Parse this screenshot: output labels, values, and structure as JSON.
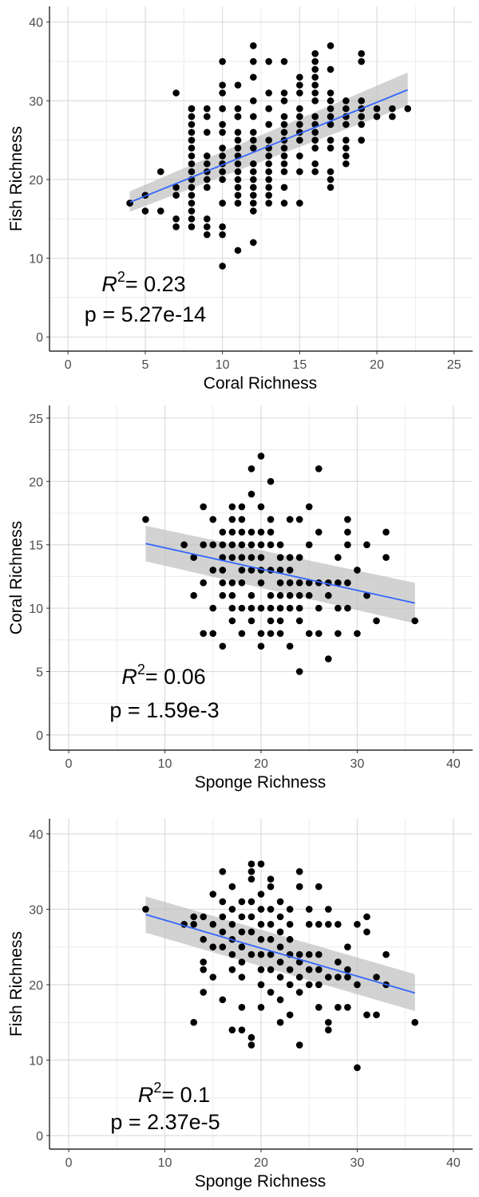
{
  "chart_data": [
    {
      "type": "scatter",
      "xlabel": "Coral Richness",
      "ylabel": "Fish Richness",
      "xlim": [
        -1.2,
        26.2
      ],
      "ylim": [
        -1.8,
        42
      ],
      "xticks": [
        0,
        5,
        10,
        15,
        20,
        25
      ],
      "yticks": [
        0,
        10,
        20,
        30,
        40
      ],
      "grid": true,
      "annotation": {
        "r2_symbol": "R",
        "r2_exponent": "2",
        "r2_value": "= 0.23",
        "p_text": "p = 5.27e-14"
      },
      "trend": {
        "x": [
          4,
          22
        ],
        "y": [
          17.1,
          31.4
        ],
        "ci_low": [
          15.9,
          29.4
        ],
        "ci_high": [
          18.5,
          33.6
        ]
      },
      "x": [
        4,
        5,
        5,
        6,
        6,
        7,
        7,
        7,
        7,
        7,
        8,
        8,
        8,
        8,
        8,
        8,
        8,
        8,
        8,
        8,
        8,
        8,
        8,
        8,
        8,
        8,
        8,
        9,
        9,
        9,
        9,
        9,
        9,
        9,
        9,
        9,
        9,
        9,
        9,
        10,
        10,
        10,
        10,
        10,
        10,
        10,
        10,
        10,
        10,
        10,
        10,
        10,
        10,
        10,
        10,
        11,
        11,
        11,
        11,
        11,
        11,
        11,
        11,
        11,
        11,
        11,
        11,
        11,
        11,
        11,
        12,
        12,
        12,
        12,
        12,
        12,
        12,
        12,
        12,
        12,
        12,
        12,
        12,
        12,
        12,
        12,
        13,
        13,
        13,
        13,
        13,
        13,
        13,
        13,
        13,
        13,
        13,
        13,
        13,
        14,
        14,
        14,
        14,
        14,
        14,
        14,
        14,
        14,
        14,
        14,
        14,
        14,
        15,
        15,
        15,
        15,
        15,
        15,
        15,
        15,
        15,
        15,
        15,
        16,
        16,
        16,
        16,
        16,
        16,
        16,
        16,
        16,
        16,
        16,
        16,
        16,
        16,
        17,
        17,
        17,
        17,
        17,
        17,
        17,
        17,
        17,
        17,
        17,
        17,
        18,
        18,
        18,
        18,
        18,
        18,
        18,
        18,
        19,
        19,
        19,
        19,
        19,
        19,
        19,
        20,
        20,
        21,
        21,
        22
      ],
      "y": [
        17,
        16,
        18,
        16,
        21,
        31,
        19,
        18,
        15,
        14,
        29,
        28,
        27,
        26,
        25,
        24,
        23,
        22,
        21,
        20,
        19,
        18,
        17,
        16,
        15,
        14,
        29,
        29,
        26,
        23,
        22,
        21,
        20,
        19,
        15,
        14,
        13,
        19,
        28,
        35,
        32,
        31,
        29,
        27,
        26,
        24,
        22,
        21,
        20,
        17,
        14,
        13,
        9,
        22,
        23,
        32,
        29,
        28,
        26,
        24,
        23,
        22,
        21,
        20,
        19,
        18,
        17,
        11,
        25,
        28,
        37,
        35,
        33,
        30,
        28,
        26,
        25,
        24,
        22,
        21,
        20,
        19,
        18,
        17,
        16,
        12,
        35,
        31,
        29,
        27,
        25,
        24,
        23,
        22,
        21,
        20,
        19,
        18,
        17,
        35,
        31,
        30,
        28,
        27,
        26,
        25,
        24,
        23,
        22,
        19,
        17,
        21,
        33,
        32,
        31,
        29,
        28,
        27,
        26,
        25,
        23,
        21,
        17,
        36,
        35,
        34,
        33,
        32,
        31,
        30,
        28,
        27,
        26,
        25,
        24,
        22,
        21,
        37,
        34,
        31,
        30,
        29,
        28,
        27,
        25,
        24,
        21,
        20,
        19,
        30,
        29,
        28,
        27,
        25,
        24,
        23,
        22,
        36,
        35,
        30,
        29,
        28,
        27,
        25,
        28,
        29,
        29,
        28,
        29
      ]
    },
    {
      "type": "scatter",
      "xlabel": "Sponge Richness",
      "ylabel": "Coral Richness",
      "xlim": [
        -2,
        42
      ],
      "ylim": [
        -1.2,
        26
      ],
      "xticks": [
        0,
        10,
        20,
        30,
        40
      ],
      "yticks": [
        0,
        5,
        10,
        15,
        20,
        25
      ],
      "grid": true,
      "annotation": {
        "r2_symbol": "R",
        "r2_exponent": "2",
        "r2_value": "= 0.06",
        "p_text": "p = 1.59e-3"
      },
      "trend": {
        "x": [
          8,
          36
        ],
        "y": [
          15.1,
          10.4
        ],
        "ci_low": [
          13.7,
          8.8
        ],
        "ci_high": [
          16.5,
          12.0
        ]
      },
      "x": [
        8,
        12,
        13,
        13,
        14,
        14,
        14,
        14,
        15,
        15,
        15,
        15,
        15,
        16,
        16,
        16,
        16,
        16,
        16,
        16,
        17,
        17,
        17,
        17,
        17,
        17,
        17,
        17,
        17,
        18,
        18,
        18,
        18,
        18,
        18,
        18,
        18,
        18,
        19,
        19,
        19,
        19,
        19,
        19,
        19,
        19,
        19,
        20,
        20,
        20,
        20,
        20,
        20,
        20,
        20,
        20,
        20,
        21,
        21,
        21,
        21,
        21,
        21,
        21,
        21,
        21,
        22,
        22,
        22,
        22,
        22,
        22,
        22,
        22,
        23,
        23,
        23,
        23,
        23,
        23,
        23,
        24,
        24,
        24,
        24,
        24,
        24,
        24,
        25,
        25,
        25,
        25,
        25,
        26,
        26,
        26,
        26,
        26,
        27,
        27,
        27,
        28,
        28,
        28,
        28,
        29,
        29,
        29,
        29,
        29,
        30,
        30,
        31,
        31,
        32,
        33,
        33,
        36
      ],
      "y": [
        17,
        15,
        14,
        11,
        18,
        15,
        12,
        8,
        17,
        15,
        13,
        10,
        8,
        16,
        15,
        14,
        13,
        12,
        11,
        7,
        18,
        17,
        16,
        15,
        14,
        12,
        11,
        10,
        9,
        18,
        17,
        16,
        15,
        14,
        13,
        12,
        10,
        8,
        21,
        19,
        16,
        15,
        14,
        13,
        11,
        10,
        9,
        22,
        18,
        16,
        15,
        14,
        13,
        12,
        10,
        8,
        7,
        20,
        17,
        16,
        15,
        13,
        11,
        10,
        9,
        8,
        15,
        14,
        13,
        12,
        11,
        10,
        9,
        8,
        17,
        14,
        13,
        12,
        11,
        10,
        7,
        17,
        14,
        12,
        11,
        10,
        9,
        5,
        18,
        15,
        12,
        11,
        8,
        21,
        16,
        12,
        10,
        8,
        12,
        11,
        6,
        14,
        12,
        10,
        8,
        17,
        16,
        15,
        12,
        10,
        8,
        13,
        15,
        11,
        9,
        16,
        14,
        9
      ]
    },
    {
      "type": "scatter",
      "xlabel": "Sponge Richness",
      "ylabel": "Fish Richness",
      "xlim": [
        -2,
        42
      ],
      "ylim": [
        -1.8,
        42
      ],
      "xticks": [
        0,
        10,
        20,
        30,
        40
      ],
      "yticks": [
        0,
        10,
        20,
        30,
        40
      ],
      "grid": true,
      "annotation": {
        "r2_symbol": "R",
        "r2_exponent": "2",
        "r2_value": "= 0.1",
        "p_text": "p = 2.37e-5"
      },
      "trend": {
        "x": [
          8,
          36
        ],
        "y": [
          29.3,
          18.9
        ],
        "ci_low": [
          26.9,
          16.5
        ],
        "ci_high": [
          31.7,
          21.4
        ]
      },
      "x": [
        8,
        12,
        13,
        13,
        13,
        14,
        14,
        14,
        14,
        14,
        15,
        15,
        15,
        15,
        16,
        16,
        16,
        16,
        16,
        16,
        17,
        17,
        17,
        17,
        17,
        17,
        17,
        18,
        18,
        18,
        18,
        18,
        18,
        18,
        18,
        19,
        19,
        19,
        19,
        19,
        19,
        19,
        19,
        19,
        20,
        20,
        20,
        20,
        20,
        20,
        20,
        20,
        20,
        21,
        21,
        21,
        21,
        21,
        21,
        21,
        21,
        22,
        22,
        22,
        22,
        22,
        22,
        22,
        22,
        23,
        23,
        23,
        23,
        23,
        23,
        23,
        24,
        24,
        24,
        24,
        24,
        24,
        24,
        25,
        25,
        25,
        25,
        25,
        26,
        26,
        26,
        26,
        26,
        26,
        27,
        27,
        27,
        27,
        27,
        28,
        28,
        28,
        28,
        29,
        29,
        29,
        29,
        30,
        30,
        30,
        31,
        31,
        31,
        32,
        32,
        33,
        33,
        36
      ],
      "y": [
        30,
        28,
        29,
        28,
        15,
        29,
        26,
        23,
        22,
        19,
        32,
        28,
        25,
        21,
        35,
        31,
        29,
        27,
        25,
        18,
        33,
        30,
        28,
        26,
        24,
        22,
        14,
        31,
        29,
        27,
        25,
        23,
        21,
        17,
        14,
        36,
        35,
        34,
        31,
        29,
        27,
        24,
        13,
        12,
        36,
        32,
        30,
        28,
        26,
        24,
        22,
        20,
        17,
        34,
        33,
        30,
        28,
        26,
        24,
        22,
        19,
        31,
        29,
        27,
        25,
        23,
        21,
        18,
        15,
        30,
        28,
        26,
        24,
        22,
        20,
        16,
        35,
        33,
        24,
        23,
        21,
        19,
        12,
        30,
        28,
        24,
        22,
        20,
        33,
        28,
        24,
        22,
        20,
        17,
        30,
        28,
        21,
        15,
        14,
        28,
        23,
        21,
        17,
        25,
        22,
        21,
        17,
        28,
        20,
        9,
        29,
        27,
        16,
        21,
        16,
        24,
        20,
        15
      ]
    }
  ]
}
